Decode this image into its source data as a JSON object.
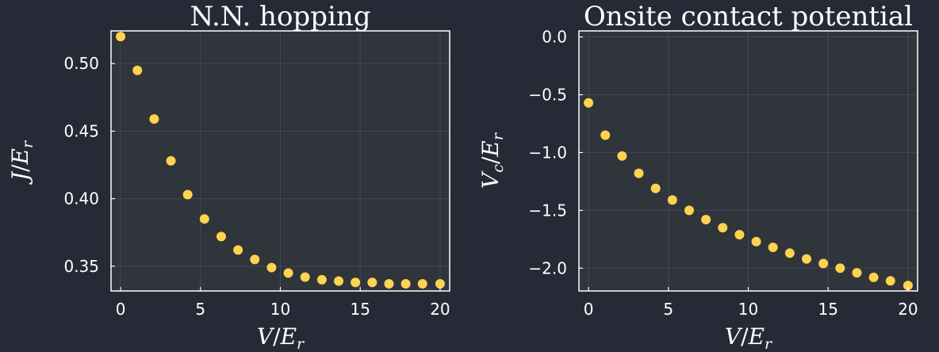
{
  "chart_data": [
    {
      "type": "scatter",
      "title": "N.N. hopping",
      "xlabel": "V/E_r",
      "ylabel": "J/E_r",
      "xlim": [
        -0.6,
        20.6
      ],
      "ylim": [
        0.3317,
        0.5242
      ],
      "xticks": [
        0,
        5,
        10,
        15,
        20
      ],
      "xtick_labels": [
        "0",
        "5",
        "10",
        "15",
        "20"
      ],
      "yticks": [
        0.35,
        0.4,
        0.45,
        0.5
      ],
      "ytick_labels": [
        "0.35",
        "0.40",
        "0.45",
        "0.50"
      ],
      "grid": true,
      "legend": false,
      "marker_color": "#ffd34f",
      "series": [
        {
          "x": [
            0,
            1.05,
            2.1,
            3.15,
            4.2,
            5.25,
            6.3,
            7.35,
            8.4,
            9.45,
            10.5,
            11.55,
            12.6,
            13.65,
            14.7,
            15.75,
            16.8,
            17.85,
            18.9,
            20
          ],
          "y": [
            0.52,
            0.495,
            0.459,
            0.428,
            0.403,
            0.385,
            0.372,
            0.362,
            0.355,
            0.349,
            0.345,
            0.342,
            0.34,
            0.339,
            0.338,
            0.338,
            0.337,
            0.337,
            0.337,
            0.337
          ]
        }
      ]
    },
    {
      "type": "scatter",
      "title": "Onsite contact potential",
      "xlabel": "V/E_r",
      "ylabel": "V_c/E_r",
      "xlim": [
        -0.6,
        20.6
      ],
      "ylim": [
        -2.197,
        0.052
      ],
      "xticks": [
        0,
        5,
        10,
        15,
        20
      ],
      "xtick_labels": [
        "0",
        "5",
        "10",
        "15",
        "20"
      ],
      "yticks": [
        0.0,
        -0.5,
        -1.0,
        -1.5,
        -2.0
      ],
      "ytick_labels": [
        "0.0",
        "−0.5",
        "−1.0",
        "−1.5",
        "−2.0"
      ],
      "grid": true,
      "legend": false,
      "marker_color": "#ffd34f",
      "series": [
        {
          "x": [
            0,
            1.05,
            2.1,
            3.15,
            4.2,
            5.25,
            6.3,
            7.35,
            8.4,
            9.45,
            10.5,
            11.55,
            12.6,
            13.65,
            14.7,
            15.75,
            16.8,
            17.85,
            18.9,
            20
          ],
          "y": [
            -0.57,
            -0.85,
            -1.03,
            -1.18,
            -1.31,
            -1.41,
            -1.5,
            -1.58,
            -1.65,
            -1.71,
            -1.77,
            -1.82,
            -1.87,
            -1.92,
            -1.96,
            -2.0,
            -2.04,
            -2.08,
            -2.11,
            -2.15
          ]
        }
      ]
    }
  ]
}
